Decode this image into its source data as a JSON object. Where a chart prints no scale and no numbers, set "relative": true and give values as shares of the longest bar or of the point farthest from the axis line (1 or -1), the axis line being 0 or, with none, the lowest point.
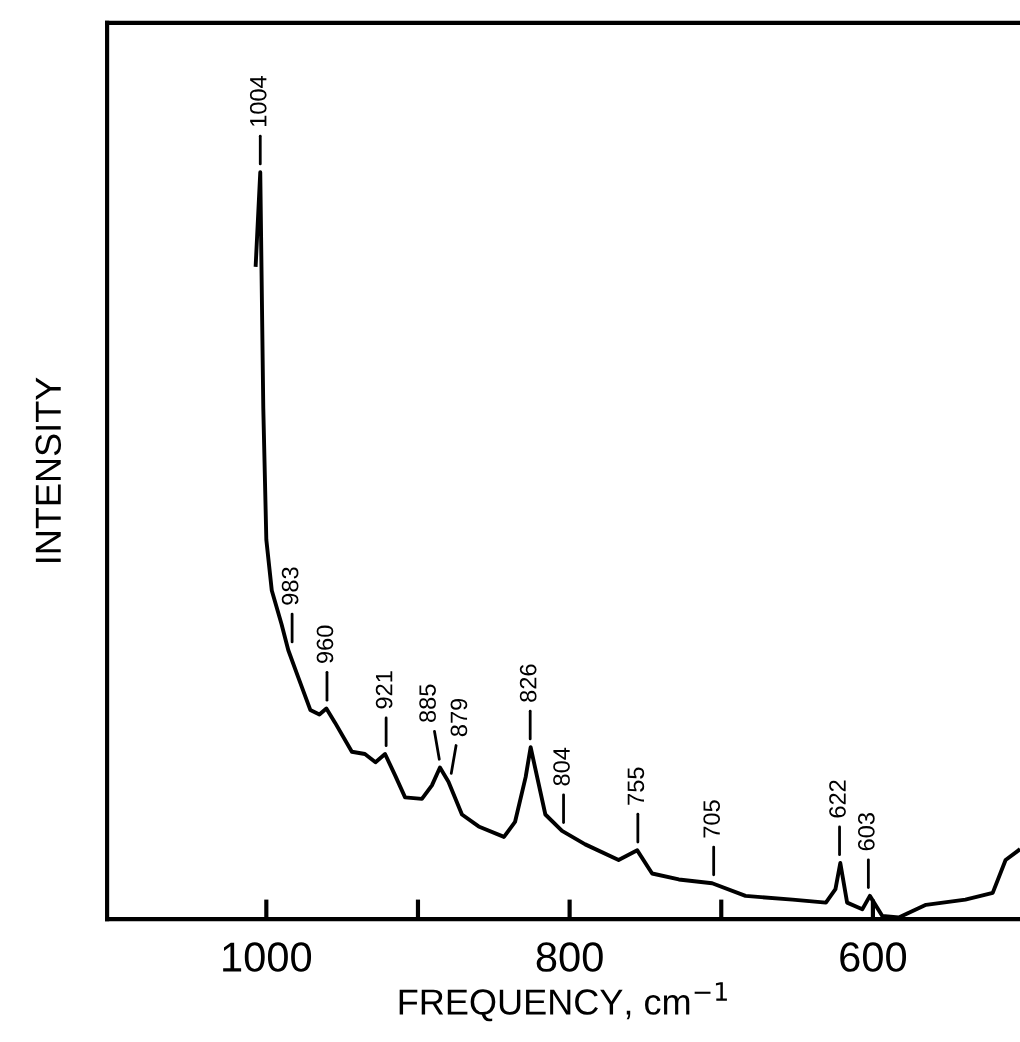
{
  "chart_data": {
    "type": "line",
    "relative": true,
    "xlabel": "FREQUENCY, cm$^{−1}$",
    "ylabel": "INTENSITY",
    "xlim": [
      1105,
      503
    ],
    "xticks": [
      1000,
      {
        "value": 900,
        "label": null
      },
      800,
      {
        "value": 700,
        "label": null
      },
      600
    ],
    "grid": false,
    "legend": false,
    "marker": "none",
    "line_style": "solid",
    "series": [
      {
        "color": "#000000",
        "x": [
          1007,
          1004,
          1002,
          1000,
          996.4,
          990,
          985.5,
          979,
          971,
          965,
          960.4,
          954.7,
          943.6,
          935,
          928,
          921.7,
          915,
          908.5,
          897.4,
          890.8,
          885.5,
          879.9,
          871,
          860,
          843.3,
          836,
          829,
          825.7,
          816,
          805,
          789.7,
          767.7,
          755.4,
          745.6,
          728,
          706,
          684,
          653,
          631,
          624.7,
          621.5,
          617,
          607,
          602,
          593.8,
          583,
          565,
          539,
          521,
          512.5,
          504
        ],
        "values": [
          0.876,
          1.0,
          0.684,
          0.508,
          0.44,
          0.395,
          0.36,
          0.324,
          0.28,
          0.274,
          0.282,
          0.263,
          0.224,
          0.221,
          0.21,
          0.221,
          0.192,
          0.163,
          0.161,
          0.179,
          0.203,
          0.184,
          0.14,
          0.124,
          0.11,
          0.13,
          0.19,
          0.23,
          0.14,
          0.118,
          0.1,
          0.079,
          0.092,
          0.061,
          0.053,
          0.048,
          0.031,
          0.026,
          0.022,
          0.04,
          0.075,
          0.022,
          0.013,
          0.031,
          0.004,
          0.002,
          0.019,
          0.026,
          0.035,
          0.079,
          0.092
        ]
      }
    ],
    "annotations": [
      {
        "text": "1004",
        "x": 1004,
        "y": 1.0
      },
      {
        "text": "983",
        "x": 983,
        "y": 0.36
      },
      {
        "text": "960",
        "x": 960,
        "y": 0.282
      },
      {
        "text": "921",
        "x": 921,
        "y": 0.221
      },
      {
        "text": "885",
        "x": 885,
        "y": 0.203
      },
      {
        "text": "879",
        "x": 879,
        "y": 0.184
      },
      {
        "text": "826",
        "x": 826,
        "y": 0.23
      },
      {
        "text": "804",
        "x": 804,
        "y": 0.118
      },
      {
        "text": "755",
        "x": 755,
        "y": 0.092
      },
      {
        "text": "705",
        "x": 705,
        "y": 0.048
      },
      {
        "text": "622",
        "x": 622,
        "y": 0.075
      },
      {
        "text": "603",
        "x": 603,
        "y": 0.031
      }
    ]
  }
}
